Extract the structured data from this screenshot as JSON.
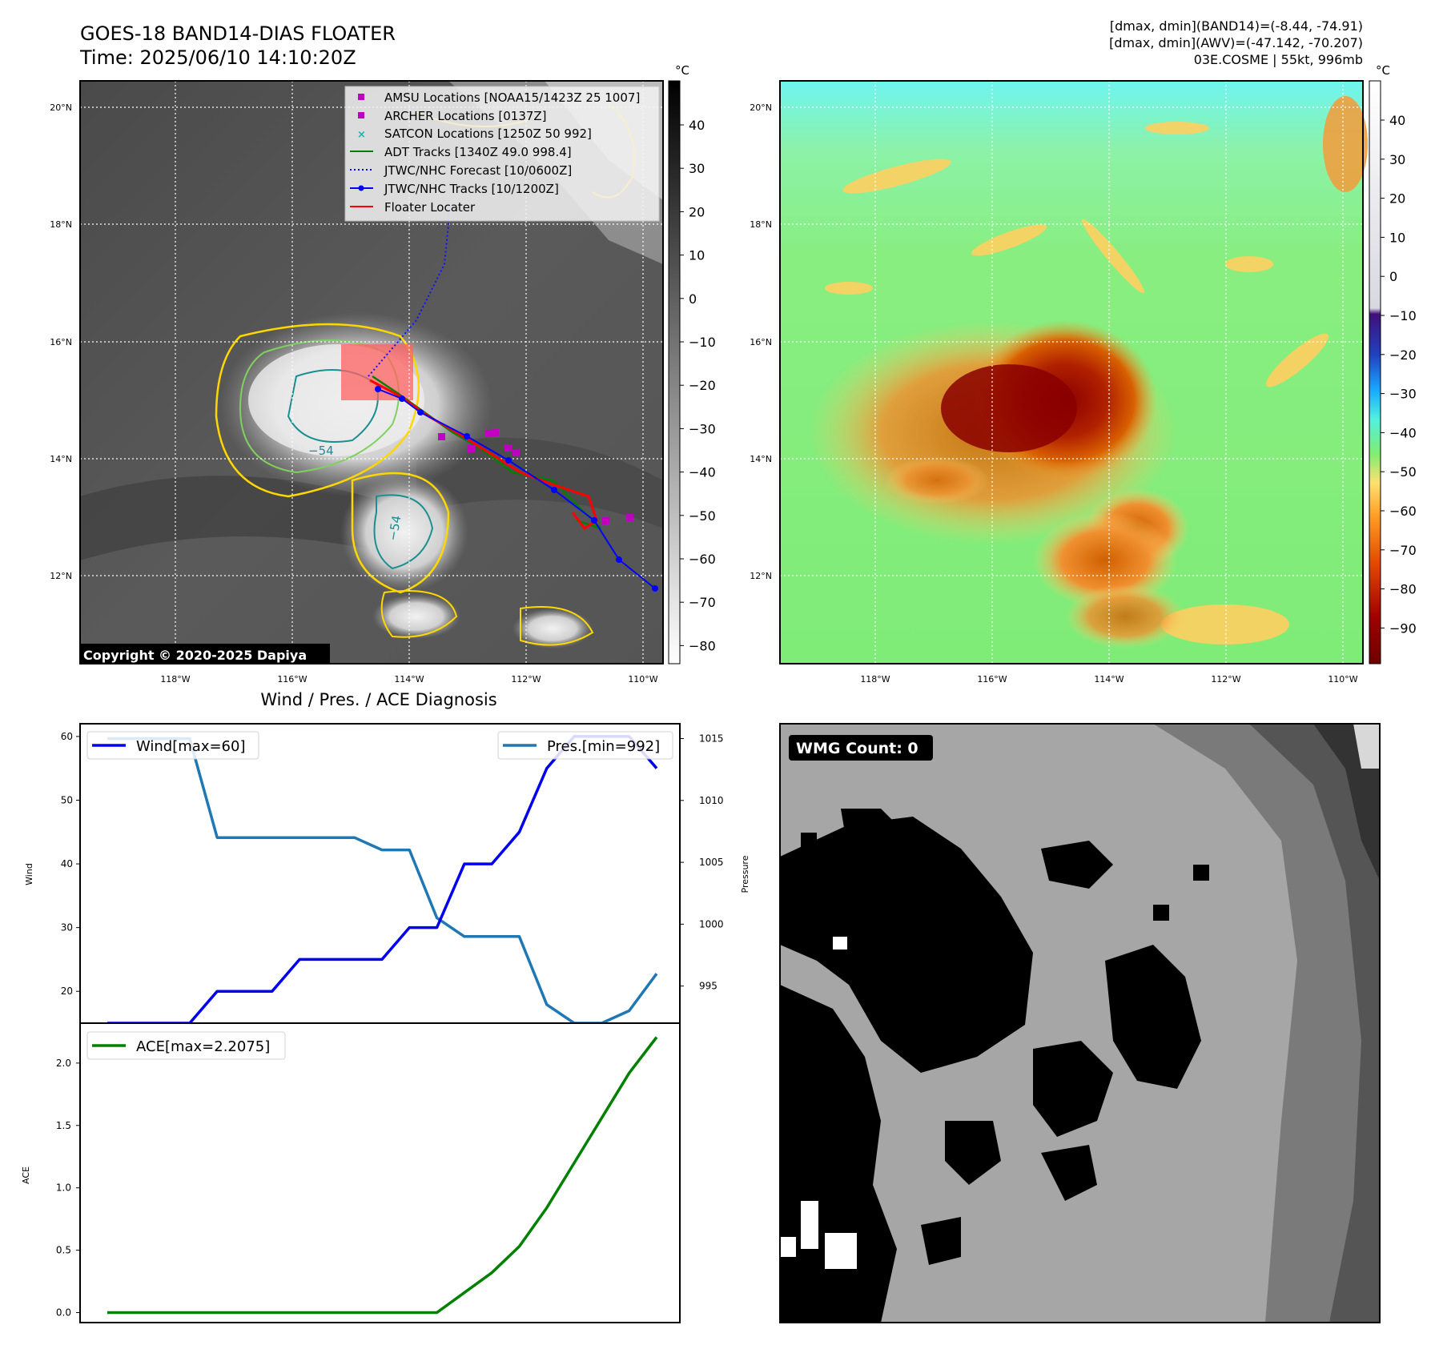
{
  "header": {
    "title": "GOES-18 BAND14-DIAS FLOATER",
    "time": "Time: 2025/06/10 14:10:20Z",
    "stats_band14": "[dmax, dmin](BAND14)=(-8.44, -74.91)",
    "stats_awv": "[dmax, dmin](AWV)=(-47.142, -70.207)",
    "storm_info": "03E.COSME | 55kt, 996mb",
    "copyright": "Copyright © 2020-2025 Dapiya"
  },
  "maps": {
    "lat_labels": [
      "20°N",
      "18°N",
      "16°N",
      "14°N",
      "12°N"
    ],
    "lon_labels": [
      "118°W",
      "116°W",
      "114°W",
      "112°W",
      "110°W"
    ],
    "colorbar_unit": "°C",
    "ir_colorbar_ticks": [
      "40",
      "30",
      "20",
      "10",
      "0",
      "−10",
      "−20",
      "−30",
      "−40",
      "−50",
      "−60",
      "−70",
      "−80"
    ],
    "awv_colorbar_ticks": [
      "40",
      "30",
      "20",
      "10",
      "0",
      "−10",
      "−20",
      "−30",
      "−40",
      "−50",
      "−60",
      "−70",
      "−80",
      "−90"
    ],
    "contour_labels": [
      "−54",
      "−54"
    ],
    "legend": [
      {
        "label": "AMSU Locations [NOAA15/1423Z 25 1007]",
        "color": "#c000c0",
        "marker": "square"
      },
      {
        "label": "ARCHER Locations [0137Z]",
        "color": "#c000c0",
        "marker": "square"
      },
      {
        "label": "SATCON Locations [1250Z 50 992]",
        "color": "#20b0b0",
        "marker": "x"
      },
      {
        "label": "ADT Tracks [1340Z 49.0 998.4]",
        "color": "#008000",
        "marker": "line"
      },
      {
        "label": "JTWC/NHC Forecast [10/0600Z]",
        "color": "#0000ff",
        "marker": "dotted"
      },
      {
        "label": "JTWC/NHC Tracks [10/1200Z]",
        "color": "#0000ff",
        "marker": "line-dot"
      },
      {
        "label": "Floater Locater",
        "color": "#ff0000",
        "marker": "line"
      }
    ]
  },
  "diagnosis": {
    "title": "Wind / Pres. / ACE Diagnosis",
    "wind_axis_label": "Wind",
    "pressure_axis_label": "Pressure",
    "ace_axis_label": "ACE",
    "wind_legend": "Wind[max=60]",
    "pres_legend": "Pres.[min=992]",
    "ace_legend": "ACE[max=2.2075]",
    "wind_ticks": [
      "60",
      "50",
      "40",
      "30",
      "20"
    ],
    "pressure_ticks": [
      "1015",
      "1010",
      "1005",
      "1000",
      "995"
    ],
    "ace_ticks": [
      "2.0",
      "1.5",
      "1.0",
      "0.5",
      "0.0"
    ]
  },
  "wmg": {
    "label": "WMG Count: 0"
  },
  "colors": {
    "wind": "#0000ee",
    "pressure": "#1f77b4",
    "ace": "#008000"
  },
  "chart_data": [
    {
      "type": "line",
      "title": "Wind / Pres. / ACE Diagnosis",
      "x": [
        0,
        1,
        2,
        3,
        4,
        5,
        6,
        7,
        8,
        9,
        10,
        11,
        12,
        13,
        14,
        15,
        16,
        17,
        18,
        19,
        20
      ],
      "ylabel": "Wind",
      "y2label": "Pressure",
      "ylim": [
        15,
        62
      ],
      "y2lim": [
        992,
        1016.2
      ],
      "series": [
        {
          "name": "Wind[max=60]",
          "axis": "left",
          "values": [
            15,
            15,
            15,
            15,
            20,
            20,
            20,
            25,
            25,
            25,
            25,
            30,
            30,
            40,
            40,
            45,
            55,
            60,
            60,
            60,
            55
          ]
        },
        {
          "name": "Pres.[min=992]",
          "axis": "right",
          "values": [
            1015,
            1015,
            1015,
            1015,
            1007,
            1007,
            1007,
            1007,
            1007,
            1007,
            1006,
            1006,
            1000.5,
            999,
            999,
            999,
            993.5,
            992,
            992,
            993,
            996
          ]
        }
      ]
    },
    {
      "type": "line",
      "x": [
        0,
        1,
        2,
        3,
        4,
        5,
        6,
        7,
        8,
        9,
        10,
        11,
        12,
        13,
        14,
        15,
        16,
        17,
        18,
        19,
        20
      ],
      "ylabel": "ACE",
      "ylim": [
        -0.08,
        2.32
      ],
      "series": [
        {
          "name": "ACE[max=2.2075]",
          "values": [
            0,
            0,
            0,
            0,
            0,
            0,
            0,
            0,
            0,
            0,
            0,
            0,
            0,
            0.16,
            0.32,
            0.53,
            0.84,
            1.2,
            1.56,
            1.92,
            2.2075
          ]
        }
      ]
    }
  ]
}
